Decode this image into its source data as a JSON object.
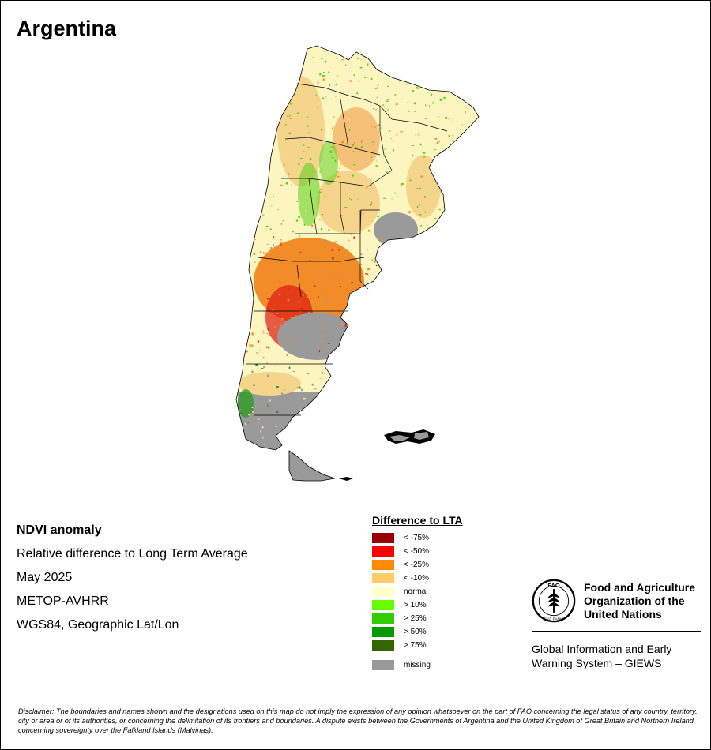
{
  "title": "Argentina",
  "info": {
    "product": "NDVI anomaly",
    "description": "Relative difference to Long Term Average",
    "period": "May 2025",
    "sensor": "METOP-AVHRR",
    "projection": "WGS84, Geographic Lat/Lon"
  },
  "legend": {
    "title": "Difference to LTA",
    "items": [
      {
        "label": "< -75%",
        "color": "#990000"
      },
      {
        "label": "< -50%",
        "color": "#ff0000"
      },
      {
        "label": "< -25%",
        "color": "#ff8c00"
      },
      {
        "label": "< -10%",
        "color": "#ffcc66"
      },
      {
        "label": "normal",
        "color": "#ffffcc"
      },
      {
        "label": "> 10%",
        "color": "#66ff00"
      },
      {
        "label": "> 25%",
        "color": "#33cc00"
      },
      {
        "label": "> 50%",
        "color": "#009900"
      },
      {
        "label": "> 75%",
        "color": "#336600"
      }
    ],
    "missing": {
      "label": "missing",
      "color": "#999999"
    }
  },
  "org": {
    "name_line1": "Food and Agriculture",
    "name_line2": "Organization of the",
    "name_line3": "United Nations",
    "emblem_text": "FAO",
    "emblem_motto": "FIAT PANIS",
    "system_line1": "Global Information and Early",
    "system_line2": "Warning System – GIEWS"
  },
  "disclaimer": "Disclaimer: The boundaries and names shown and the designations used on this map do not imply the expression of any opinion whatsoever on the part of FAO concerning the legal status of any country, territory, city or area or of its authorities, or concerning the delimitation of its frontiers and boundaries. A dispute exists between the Governments of Argentina and the United Kingdom of Great Britain and Northern Ireland concerning sovereignty over the Falkland Islands (Malvinas).",
  "map_colors": {
    "normal": "#fdf5c0",
    "mild_deficit": "#f5d48c",
    "moderate_deficit": "#f28c28",
    "severe_deficit": "#dd1a0f",
    "missing": "#9a9a9a",
    "positive": "#55d018",
    "strong_positive": "#1f9b10",
    "border": "#000000"
  }
}
